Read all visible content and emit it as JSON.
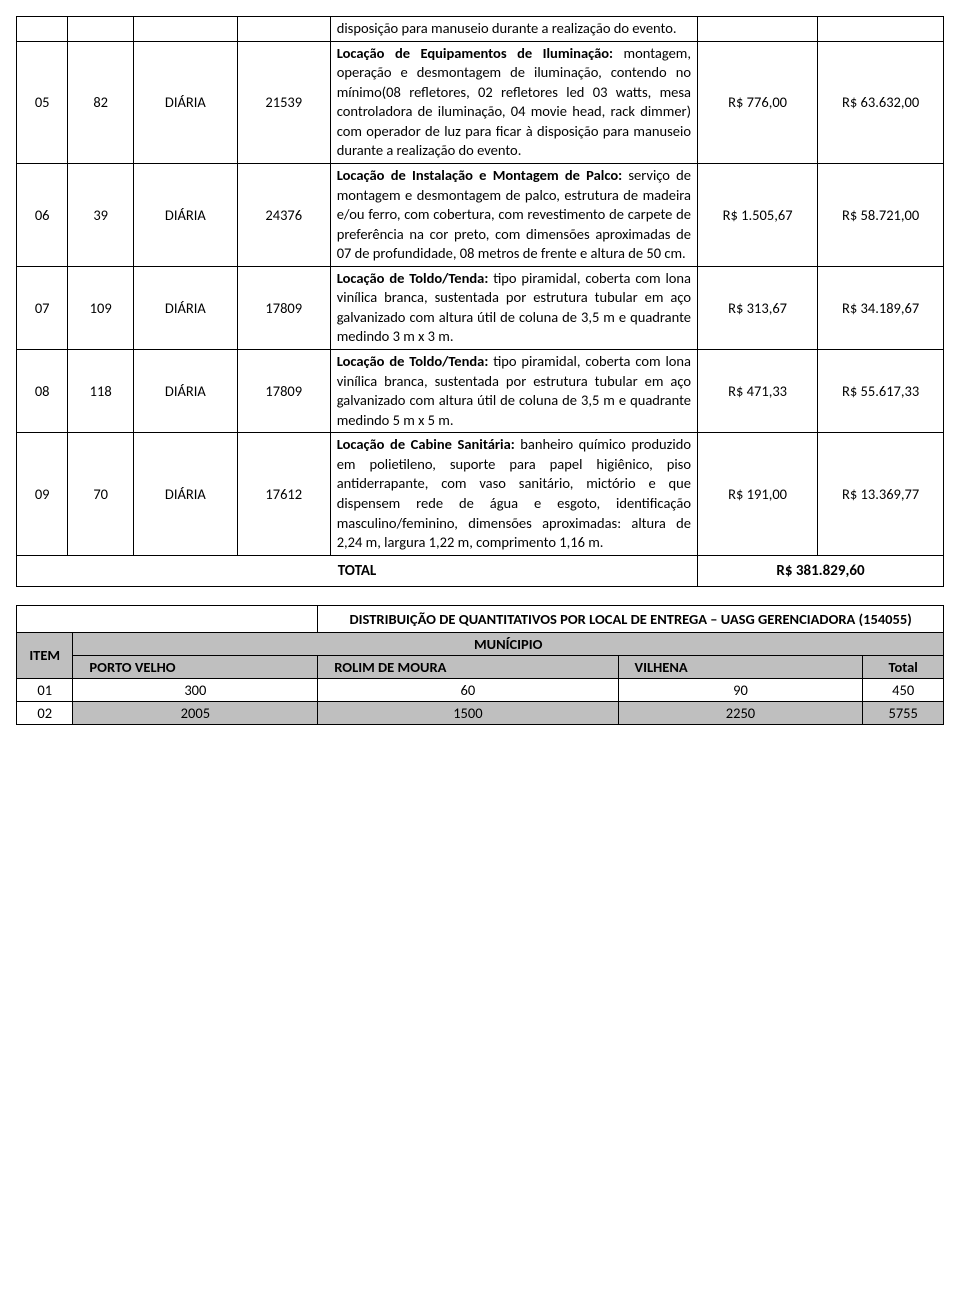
{
  "main_table": {
    "col_widths": [
      "47",
      "60",
      "95",
      "85",
      "310",
      "110",
      "115"
    ],
    "first_row_desc": "disposição para manuseio durante a realização do evento.",
    "rows": [
      {
        "c0": "05",
        "c1": "82",
        "c2": "DIÁRIA",
        "c3": "21539",
        "bold": "Locação de Equipamentos de Iluminação:",
        "rest": " montagem, operação e desmontagem de iluminação, contendo no mínimo(08 refletores, 02 refletores led 03 watts, mesa controladora de iluminação, 04 movie head, rack dimmer) com operador de luz para ficar à disposição para manuseio durante a realização do evento.",
        "c5": "R$ 776,00",
        "c6": "R$ 63.632,00"
      },
      {
        "c0": "06",
        "c1": "39",
        "c2": "DIÁRIA",
        "c3": "24376",
        "bold": "Locação de Instalação e Montagem de Palco:",
        "rest": " serviço de montagem e desmontagem de palco, estrutura de madeira e/ou ferro, com cobertura, com revestimento de carpete de preferência na cor preto, com dimensões aproximadas de 07 de profundidade, 08 metros de frente e altura de 50 cm.",
        "c5": "R$ 1.505,67",
        "c6": "R$ 58.721,00"
      },
      {
        "c0": "07",
        "c1": "109",
        "c2": "DIÁRIA",
        "c3": "17809",
        "bold": "Locação de Toldo/Tenda:",
        "rest": " tipo piramidal, coberta com lona vinílica branca, sustentada por estrutura tubular em aço galvanizado com altura útil de coluna de 3,5 m e quadrante medindo 3 m x 3 m.",
        "c5": "R$ 313,67",
        "c6": "R$ 34.189,67"
      },
      {
        "c0": "08",
        "c1": "118",
        "c2": "DIÁRIA",
        "c3": "17809",
        "bold": "Locação de Toldo/Tenda:",
        "rest": " tipo piramidal, coberta com lona vinílica branca, sustentada por estrutura tubular em aço galvanizado com altura útil de coluna de 3,5 m e quadrante medindo 5 m x 5 m.",
        "c5": "R$ 471,33",
        "c6": "R$ 55.617,33"
      },
      {
        "c0": "09",
        "c1": "70",
        "c2": "DIÁRIA",
        "c3": "17612",
        "bold": "Locação de Cabine Sanitária:",
        "rest": " banheiro químico produzido em polietileno, suporte para papel higiênico, piso antiderrapante, com vaso sanitário, mictório e que dispensem rede de água e esgoto, identificação masculino/feminino, dimensões aproximadas: altura de 2,24 m, largura 1,22 m, comprimento 1,16 m.",
        "c5": "R$ 191,00",
        "c6": "R$ 13.369,77"
      }
    ],
    "total_label": "TOTAL",
    "total_value": "R$ 381.829,60"
  },
  "dist_table": {
    "header": "DISTRIBUIÇÃO DE QUANTITATIVOS POR LOCAL DE ENTREGA – UASG GERENCIADORA (154055)",
    "item_label": "ITEM",
    "municipio_label": "MUNÍCIPIO",
    "cols": [
      "PORTO VELHO",
      "ROLIM DE MOURA",
      "VILHENA",
      "Total"
    ],
    "rows": [
      {
        "item": "01",
        "v0": "300",
        "v1": "60",
        "v2": "90",
        "total": "450"
      },
      {
        "item": "02",
        "v0": "2005",
        "v1": "1500",
        "v2": "2250",
        "total": "5755"
      }
    ]
  }
}
